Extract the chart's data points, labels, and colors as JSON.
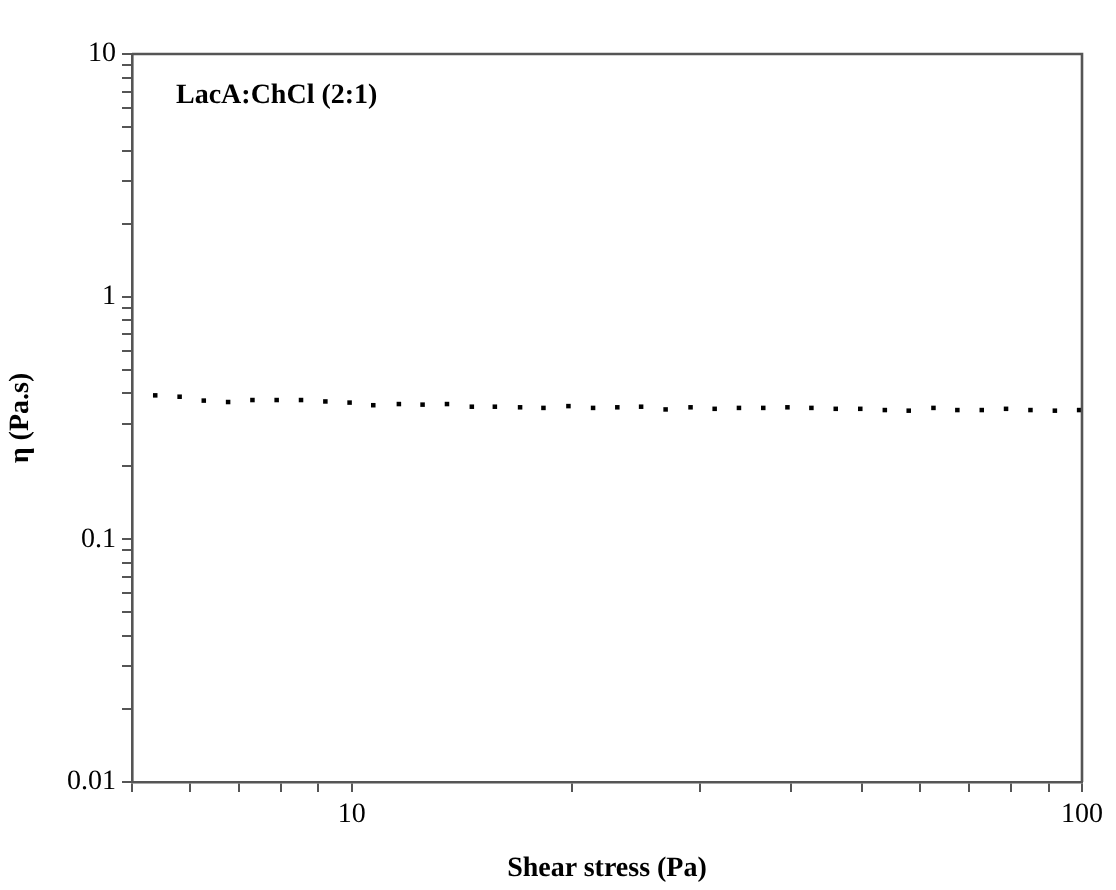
{
  "chart_data": {
    "type": "scatter",
    "ylabel": "η (Pa.s)",
    "xlabel": "Shear stress (Pa)",
    "annotations": [
      "LacA:ChCl (2:1)"
    ],
    "log": "xy",
    "marker": "square",
    "grid": false,
    "legend": false,
    "xlim": [
      5,
      100
    ],
    "ylim": [
      0.01,
      10
    ],
    "xticks": [
      {
        "value": 5,
        "label": null
      },
      {
        "value": 6,
        "label": null
      },
      {
        "value": 7,
        "label": null
      },
      {
        "value": 8,
        "label": null
      },
      {
        "value": 9,
        "label": null
      },
      10,
      {
        "value": 20,
        "label": null
      },
      {
        "value": 30,
        "label": null
      },
      {
        "value": 40,
        "label": null
      },
      {
        "value": 50,
        "label": null
      },
      {
        "value": 60,
        "label": null
      },
      {
        "value": 70,
        "label": null
      },
      {
        "value": 80,
        "label": null
      },
      {
        "value": 90,
        "label": null
      },
      100
    ],
    "yticks": [
      0.01,
      {
        "value": 0.02,
        "label": null
      },
      {
        "value": 0.03,
        "label": null
      },
      {
        "value": 0.04,
        "label": null
      },
      {
        "value": 0.05,
        "label": null
      },
      {
        "value": 0.06,
        "label": null
      },
      {
        "value": 0.07,
        "label": null
      },
      {
        "value": 0.08,
        "label": null
      },
      {
        "value": 0.09,
        "label": null
      },
      0.1,
      {
        "value": 0.2,
        "label": null
      },
      {
        "value": 0.3,
        "label": null
      },
      {
        "value": 0.4,
        "label": null
      },
      {
        "value": 0.5,
        "label": null
      },
      {
        "value": 0.6,
        "label": null
      },
      {
        "value": 0.7,
        "label": null
      },
      {
        "value": 0.8,
        "label": null
      },
      {
        "value": 0.9,
        "label": null
      },
      1,
      {
        "value": 2,
        "label": null
      },
      {
        "value": 3,
        "label": null
      },
      {
        "value": 4,
        "label": null
      },
      {
        "value": 5,
        "label": null
      },
      {
        "value": 6,
        "label": null
      },
      {
        "value": 7,
        "label": null
      },
      {
        "value": 8,
        "label": null
      },
      {
        "value": 9,
        "label": null
      },
      10
    ],
    "series": [
      {
        "color": "#000000",
        "x": [
          5.38,
          5.81,
          6.27,
          6.77,
          7.31,
          7.89,
          8.52,
          9.2,
          9.93,
          10.7,
          11.6,
          12.5,
          13.5,
          14.6,
          15.7,
          17,
          18.3,
          19.8,
          21.4,
          23.1,
          24.9,
          26.9,
          29.1,
          31.4,
          33.9,
          36.6,
          39.5,
          42.6,
          46,
          49.7,
          53.7,
          57.9,
          62.6,
          67.5,
          72.9,
          78.7,
          85,
          91.8,
          99.1
        ],
        "values": [
          0.392,
          0.387,
          0.373,
          0.368,
          0.375,
          0.375,
          0.375,
          0.37,
          0.366,
          0.357,
          0.361,
          0.359,
          0.361,
          0.352,
          0.352,
          0.35,
          0.348,
          0.354,
          0.348,
          0.35,
          0.352,
          0.343,
          0.35,
          0.345,
          0.348,
          0.348,
          0.35,
          0.348,
          0.345,
          0.345,
          0.341,
          0.339,
          0.348,
          0.341,
          0.341,
          0.345,
          0.341,
          0.339,
          0.341
        ]
      }
    ]
  }
}
